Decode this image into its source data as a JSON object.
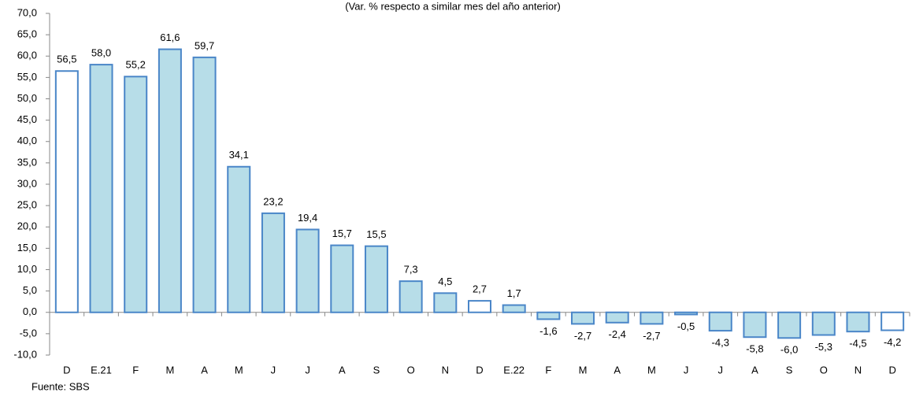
{
  "chart_data": {
    "type": "bar",
    "subtitle": "(Var. % respecto a similar mes del año anterior)",
    "source": "Fuente: SBS",
    "categories": [
      "D",
      "E.21",
      "F",
      "M",
      "A",
      "M",
      "J",
      "J",
      "A",
      "S",
      "O",
      "N",
      "D",
      "E.22",
      "F",
      "M",
      "A",
      "M",
      "J",
      "J",
      "A",
      "S",
      "O",
      "N",
      "D"
    ],
    "values": [
      56.5,
      58.0,
      55.2,
      61.6,
      59.7,
      34.1,
      23.2,
      19.4,
      15.7,
      15.5,
      7.3,
      4.5,
      2.7,
      1.7,
      -1.6,
      -2.7,
      -2.4,
      -2.7,
      -0.5,
      -4.3,
      -5.8,
      -6.0,
      -5.3,
      -4.5,
      -4.2
    ],
    "value_labels": [
      "56,5",
      "58,0",
      "55,2",
      "61,6",
      "59,7",
      "34,1",
      "23,2",
      "19,4",
      "15,7",
      "15,5",
      "7,3",
      "4,5",
      "2,7",
      "1,7",
      "-1,6",
      "-2,7",
      "-2,4",
      "-2,7",
      "-0,5",
      "-4,3",
      "-5,8",
      "-6,0",
      "-5,3",
      "-4,5",
      "-4,2"
    ],
    "colors": [
      "#ffffff",
      "#b7dde8",
      "#b7dde8",
      "#b7dde8",
      "#b7dde8",
      "#b7dde8",
      "#b7dde8",
      "#b7dde8",
      "#b7dde8",
      "#b7dde8",
      "#b7dde8",
      "#b7dde8",
      "#ffffff",
      "#b7dde8",
      "#b7dde8",
      "#b7dde8",
      "#b7dde8",
      "#b7dde8",
      "#b7dde8",
      "#b7dde8",
      "#b7dde8",
      "#b7dde8",
      "#b7dde8",
      "#b7dde8",
      "#ffffff"
    ],
    "edge_color": "#4a86c8",
    "ylim": [
      -10,
      70
    ],
    "yticks": [
      {
        "value": -10,
        "label": "-10,0"
      },
      {
        "value": -5,
        "label": "-5,0"
      },
      {
        "value": 0,
        "label": "0,0"
      },
      {
        "value": 5,
        "label": "5,0"
      },
      {
        "value": 10,
        "label": "10,0"
      },
      {
        "value": 15,
        "label": "15,0"
      },
      {
        "value": 20,
        "label": "20,0"
      },
      {
        "value": 25,
        "label": "25,0"
      },
      {
        "value": 30,
        "label": "30,0"
      },
      {
        "value": 35,
        "label": "35,0"
      },
      {
        "value": 40,
        "label": "40,0"
      },
      {
        "value": 45,
        "label": "45,0"
      },
      {
        "value": 50,
        "label": "50,0"
      },
      {
        "value": 55,
        "label": "55,0"
      },
      {
        "value": 60,
        "label": "60,0"
      },
      {
        "value": 65,
        "label": "65,0"
      },
      {
        "value": 70,
        "label": "70,0"
      }
    ]
  }
}
